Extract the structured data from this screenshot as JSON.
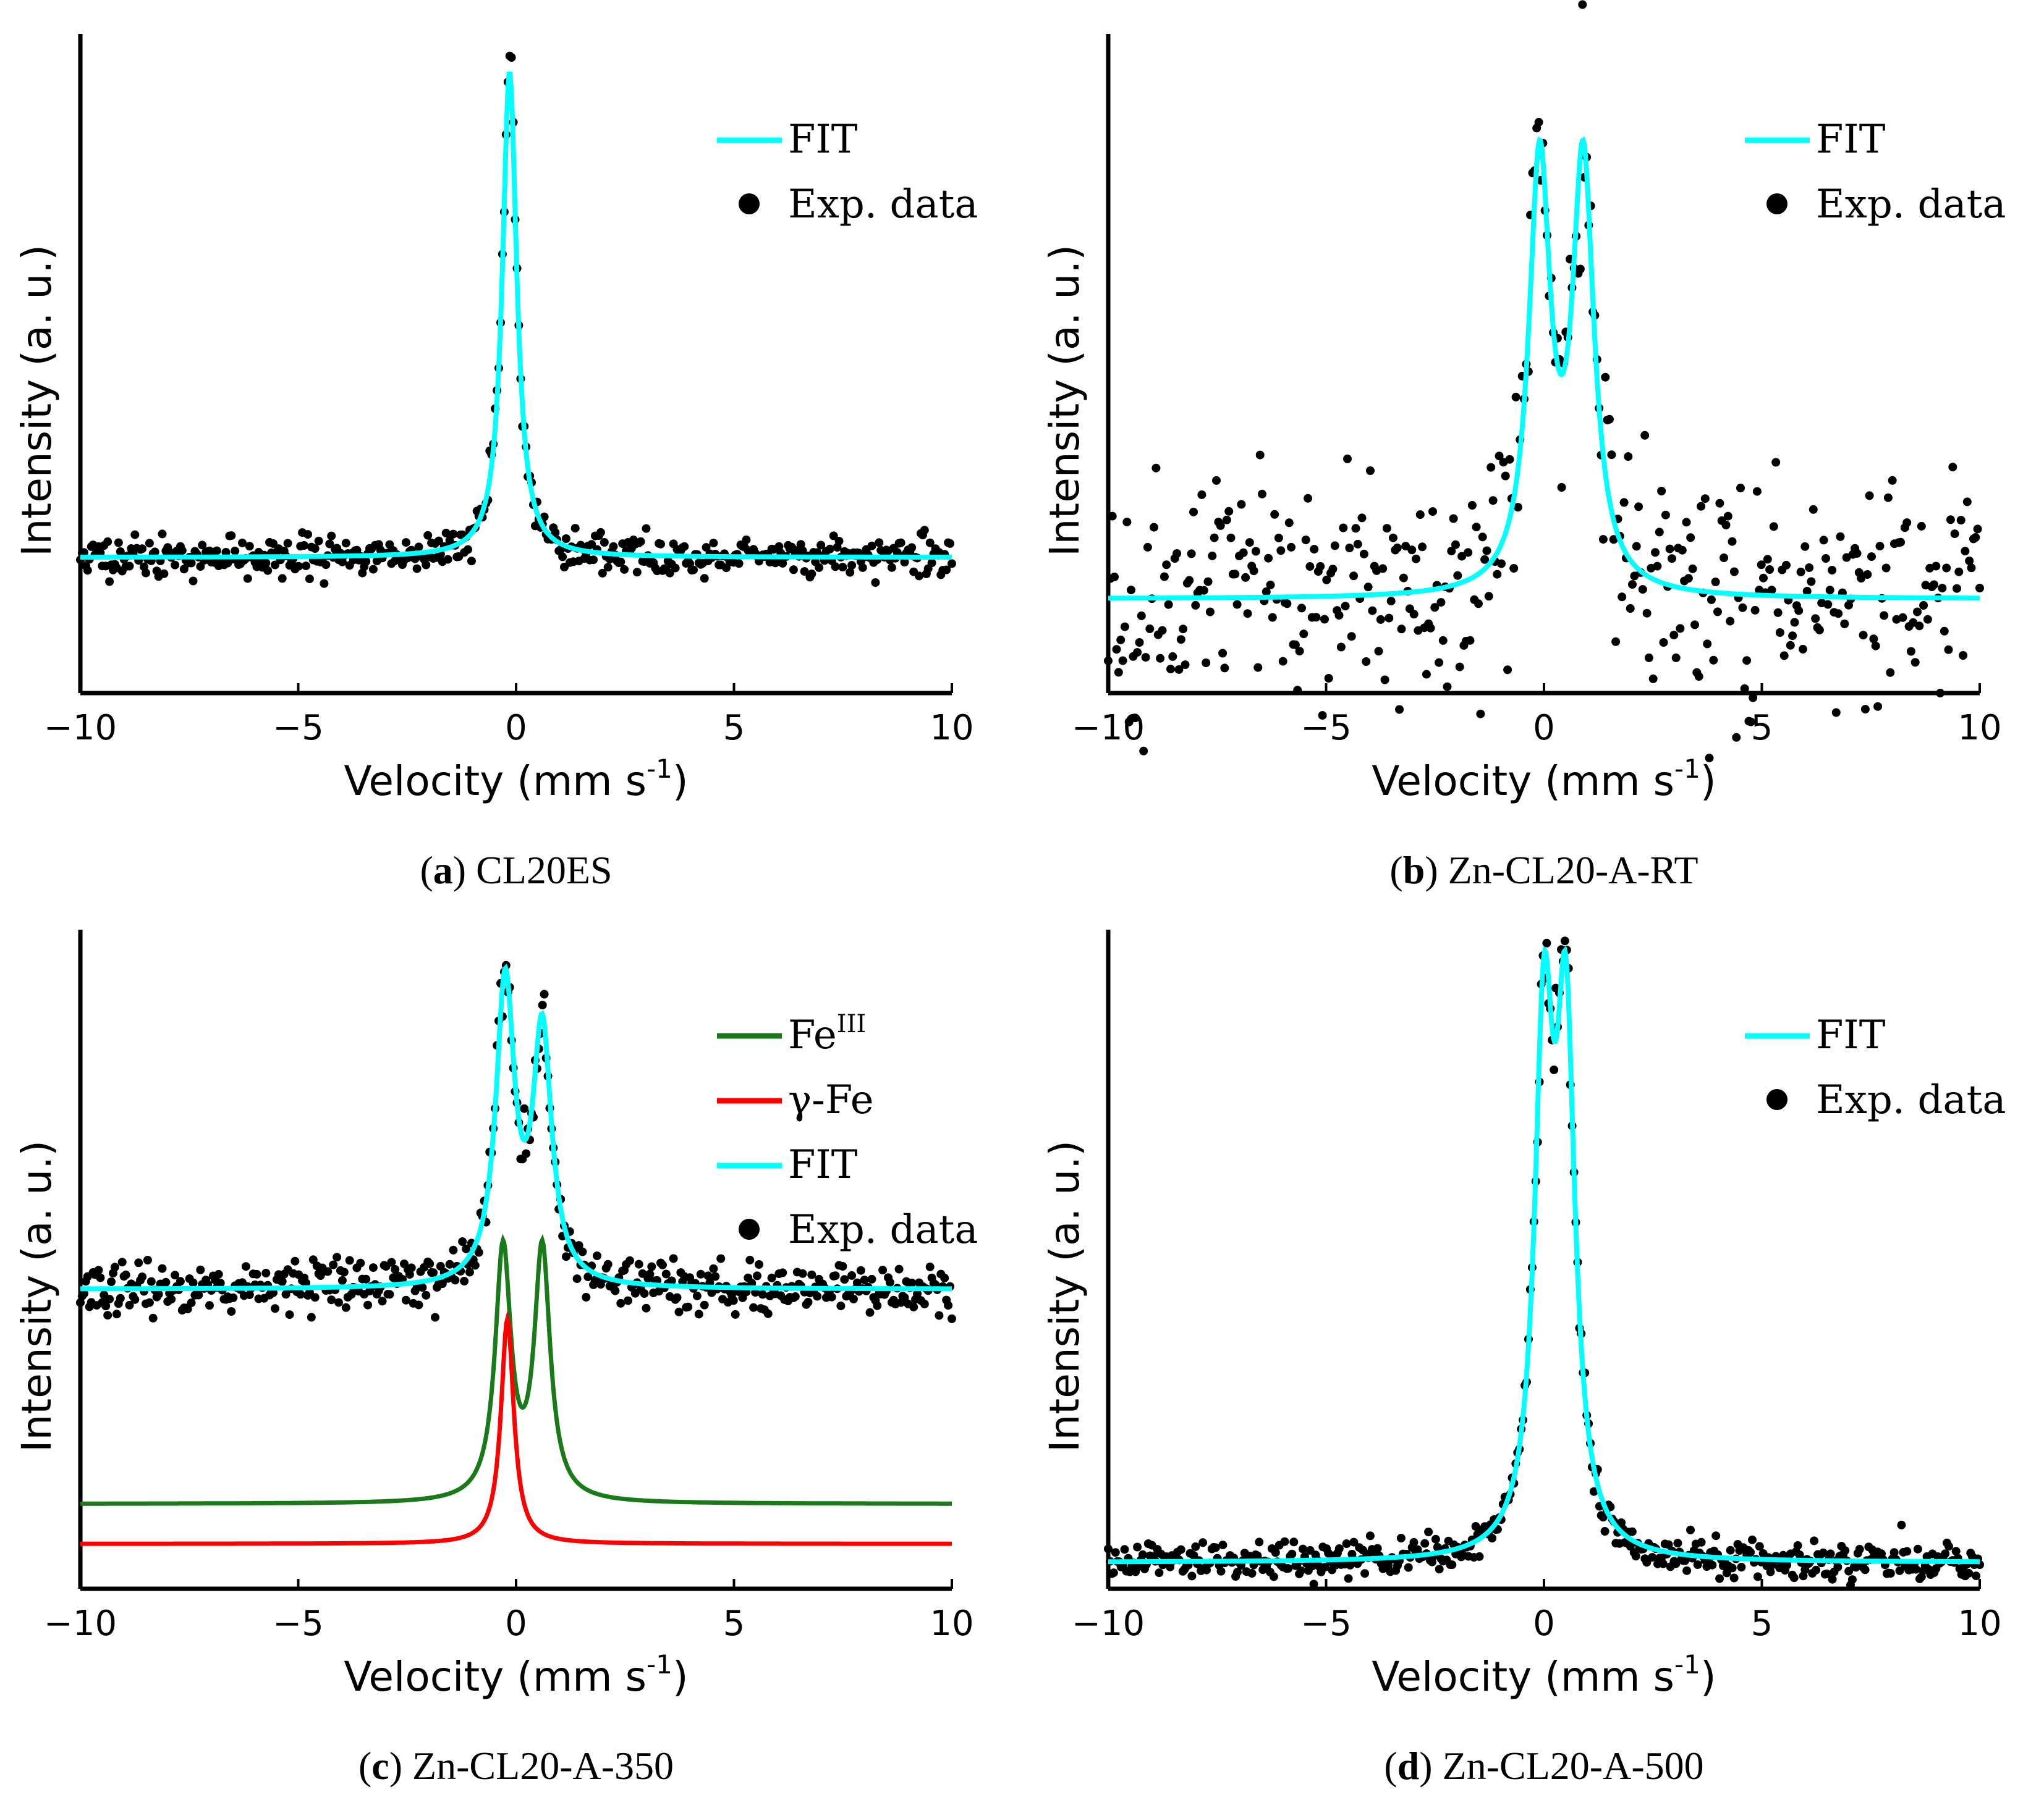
{
  "colors": {
    "fit": "#00ffff",
    "fe3": "#1a7a1a",
    "gfe": "#ff0000",
    "data": "#000000",
    "axis": "#000000"
  },
  "chart_data": [
    {
      "type": "scatter",
      "panel": "a",
      "caption_label": "a",
      "caption_text": "CL20ES",
      "xlabel": "Velocity (mm s",
      "xlabel_sup": "-1",
      "xlabel_close": ")",
      "ylabel": "Intensity (a. u.)",
      "xlim": [
        -10,
        10
      ],
      "ylim": [
        -0.28,
        1.08
      ],
      "xticks": [
        "−10",
        "−5",
        "0",
        "5",
        "10"
      ],
      "xtick_values": [
        -10,
        -5,
        0,
        5,
        10
      ],
      "legend": [
        {
          "label": "FIT",
          "kind": "line",
          "color": "#00ffff"
        },
        {
          "label": "Exp. data",
          "kind": "dot",
          "color": "#000000"
        }
      ],
      "baseline": 0.0,
      "noise": 0.02,
      "seed": 11,
      "n_points": 480,
      "fit": {
        "baseline": 0.0,
        "peaks": [
          {
            "center": -0.15,
            "hwhm": 0.2,
            "amp": 1.0
          }
        ]
      },
      "components": []
    },
    {
      "type": "scatter",
      "panel": "b",
      "caption_label": "b",
      "caption_text": "Zn-CL20-A-RT",
      "xlabel": "Velocity (mm s",
      "xlabel_sup": "-1",
      "xlabel_close": ")",
      "ylabel": "Intensity (a. u.)",
      "xlim": [
        -10,
        10
      ],
      "ylim": [
        -0.2,
        1.2
      ],
      "xticks": [
        "−10",
        "−5",
        "0",
        "5",
        "10"
      ],
      "xtick_values": [
        -10,
        -5,
        0,
        5,
        10
      ],
      "legend": [
        {
          "label": "FIT",
          "kind": "line",
          "color": "#00ffff"
        },
        {
          "label": "Exp. data",
          "kind": "dot",
          "color": "#000000"
        }
      ],
      "baseline": 0.0,
      "noise": 0.12,
      "seed": 23,
      "n_points": 420,
      "fit": {
        "baseline": 0.0,
        "peaks": [
          {
            "center": -0.1,
            "hwhm": 0.3,
            "amp": 0.9
          },
          {
            "center": 0.9,
            "hwhm": 0.3,
            "amp": 0.9
          }
        ]
      },
      "components": []
    },
    {
      "type": "scatter",
      "panel": "c",
      "caption_label": "c",
      "caption_text": "Zn-CL20-A-350",
      "xlabel": "Velocity (mm s",
      "xlabel_sup": "-1",
      "xlabel_close": ")",
      "ylabel": "Intensity (a. u.)",
      "xlim": [
        -10,
        10
      ],
      "ylim": [
        -0.27,
        1.05
      ],
      "xticks": [
        "−10",
        "−5",
        "0",
        "5",
        "10"
      ],
      "xtick_values": [
        -10,
        -5,
        0,
        5,
        10
      ],
      "legend": [
        {
          "label": "Fe",
          "sup": "III",
          "kind": "line",
          "color": "#1a7a1a"
        },
        {
          "label": "γ-Fe",
          "kind": "line",
          "color": "#ff0000"
        },
        {
          "label": "FIT",
          "kind": "line",
          "color": "#00ffff"
        },
        {
          "label": "Exp. data",
          "kind": "dot",
          "color": "#000000"
        }
      ],
      "baseline": 0.33,
      "noise": 0.025,
      "seed": 37,
      "n_points": 480,
      "fit": {
        "baseline": 0.33,
        "peaks": [
          {
            "center": -0.25,
            "hwhm": 0.26,
            "amp": 0.6
          },
          {
            "center": 0.6,
            "hwhm": 0.26,
            "amp": 0.5
          }
        ]
      },
      "components": [
        {
          "name": "Fe III",
          "color": "#1a7a1a",
          "baseline": -0.1,
          "peaks": [
            {
              "center": -0.3,
              "hwhm": 0.22,
              "amp": 0.5
            },
            {
              "center": 0.6,
              "hwhm": 0.22,
              "amp": 0.5
            }
          ]
        },
        {
          "name": "gamma-Fe",
          "color": "#ff0000",
          "baseline": -0.18,
          "peaks": [
            {
              "center": -0.2,
              "hwhm": 0.18,
              "amp": 0.45
            }
          ]
        }
      ]
    },
    {
      "type": "scatter",
      "panel": "d",
      "caption_label": "d",
      "caption_text": "Zn-CL20-A-500",
      "xlabel": "Velocity (mm s",
      "xlabel_sup": "-1",
      "xlabel_close": ")",
      "ylabel": "Intensity (a. u.)",
      "xlim": [
        -10,
        10
      ],
      "ylim": [
        -0.05,
        1.2
      ],
      "xticks": [
        "−10",
        "−5",
        "0",
        "5",
        "10"
      ],
      "xtick_values": [
        -10,
        -5,
        0,
        5,
        10
      ],
      "legend": [
        {
          "label": "FIT",
          "kind": "line",
          "color": "#00ffff"
        },
        {
          "label": "Exp. data",
          "kind": "dot",
          "color": "#000000"
        }
      ],
      "baseline": 0.0,
      "noise": 0.018,
      "seed": 51,
      "n_points": 480,
      "fit": {
        "baseline": 0.0,
        "peaks": [
          {
            "center": 0.0,
            "hwhm": 0.26,
            "amp": 0.95
          },
          {
            "center": 0.5,
            "hwhm": 0.26,
            "amp": 0.95
          }
        ]
      },
      "components": []
    }
  ]
}
